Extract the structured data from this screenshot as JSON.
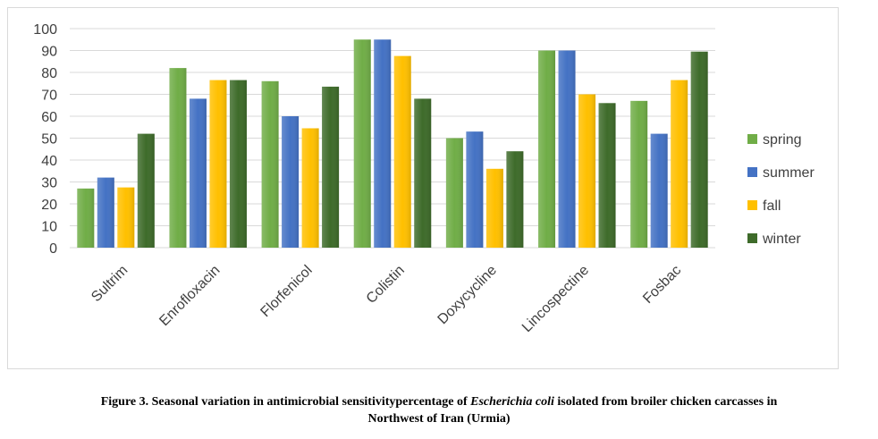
{
  "chart_data": {
    "type": "bar",
    "title": "",
    "xlabel": "",
    "ylabel": "",
    "ylim": [
      0,
      100
    ],
    "yticks": [
      "0",
      "10",
      "20",
      "30",
      "40",
      "50",
      "60",
      "70",
      "80",
      "90",
      "100"
    ],
    "categories": [
      "Sultrim",
      "Enrofloxacin",
      "Florfenicol",
      "Colistin",
      "Doxycycline",
      "Lincospectine",
      "Fosbac"
    ],
    "series": [
      {
        "name": "spring",
        "color": "#70ad47",
        "values": [
          27,
          82,
          76,
          95,
          50,
          90,
          67
        ]
      },
      {
        "name": "summer",
        "color": "#4472c4",
        "values": [
          32,
          68,
          60,
          95,
          53,
          90,
          52
        ]
      },
      {
        "name": "fall",
        "color": "#ffc000",
        "values": [
          27.5,
          76.5,
          54.5,
          87.5,
          36,
          70,
          76.5
        ]
      },
      {
        "name": "winter",
        "color": "#3e6b2a",
        "values": [
          52,
          76.5,
          73.5,
          68,
          44,
          66,
          89.5
        ]
      }
    ],
    "grid": true,
    "legend": "right"
  },
  "caption": {
    "part1": "Figure 3. Seasonal variation in antimicrobial sensitivitypercentage of ",
    "italic": "Escherichia coli",
    "part2": " isolated from broiler chicken carcasses in",
    "line2": "Northwest of Iran (Urmia)"
  }
}
